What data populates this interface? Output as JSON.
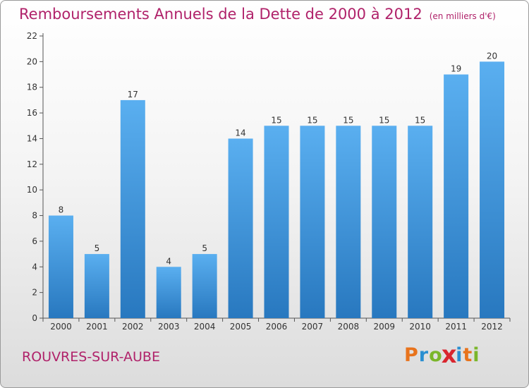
{
  "title": "Remboursements Annuels de la Dette de 2000 à 2012",
  "subtitle": "(en milliers d'€)",
  "town": "ROUVRES-SUR-AUBE",
  "logo": {
    "text": "Proxiti",
    "letters": [
      "P",
      "r",
      "o",
      "x",
      "i",
      "t",
      "i"
    ],
    "colors": [
      "#e8731c",
      "#2a8fd1",
      "#7bb62b",
      "#d9262f",
      "#2a8fd1",
      "#e8731c",
      "#7bb62b"
    ]
  },
  "colors": {
    "title": "#b0226a",
    "bar_top": "#5aaff0",
    "bar_bottom": "#2878bf",
    "axis": "#555555"
  },
  "chart_data": {
    "type": "bar",
    "categories": [
      "2000",
      "2001",
      "2002",
      "2003",
      "2004",
      "2005",
      "2006",
      "2007",
      "2008",
      "2009",
      "2010",
      "2011",
      "2012"
    ],
    "values": [
      8,
      5,
      17,
      4,
      5,
      14,
      15,
      15,
      15,
      15,
      15,
      19,
      20
    ],
    "yticks": [
      0,
      2,
      4,
      6,
      8,
      10,
      12,
      14,
      16,
      18,
      20,
      22
    ],
    "ylim": [
      0,
      22
    ],
    "grid": false,
    "xlabel": "",
    "ylabel": ""
  }
}
